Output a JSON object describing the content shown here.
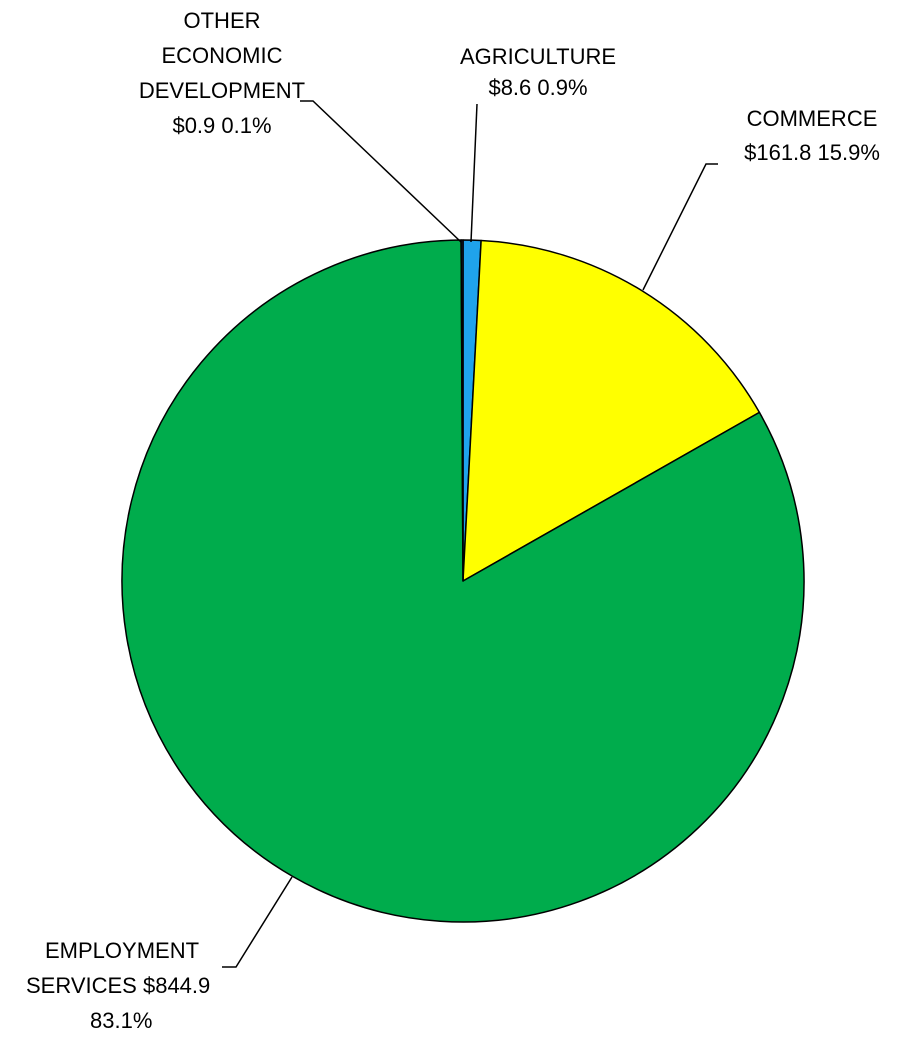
{
  "chart_data": {
    "type": "pie",
    "start_angle_deg": 0,
    "direction": "clockwise",
    "slices": [
      {
        "label": "AGRICULTURE",
        "value": 8.6,
        "percent": "0.9%",
        "value_text": "$8.6",
        "color": "#1fa3ec",
        "label_lines": [
          "AGRICULTURE",
          "$8.6  0.9%"
        ]
      },
      {
        "label": "COMMERCE",
        "value": 161.8,
        "percent": "15.9%",
        "value_text": "$161.8",
        "color": "#ffff00",
        "label_lines": [
          "COMMERCE",
          "$161.8  15.9%"
        ]
      },
      {
        "label": "EMPLOYMENT SERVICES",
        "value": 844.9,
        "percent": "83.1%",
        "value_text": "$844.9",
        "color": "#00ac4c",
        "label_lines": [
          "EMPLOYMENT",
          "SERVICES  $844.9",
          "83.1%"
        ]
      },
      {
        "label": "OTHER ECONOMIC DEVELOPMENT",
        "value": 0.9,
        "percent": "0.1%",
        "value_text": "$0.9",
        "color": "#1f3864",
        "label_lines": [
          "OTHER",
          "ECONOMIC",
          "DEVELOPMENT",
          "$0.9  0.1%"
        ]
      }
    ]
  }
}
